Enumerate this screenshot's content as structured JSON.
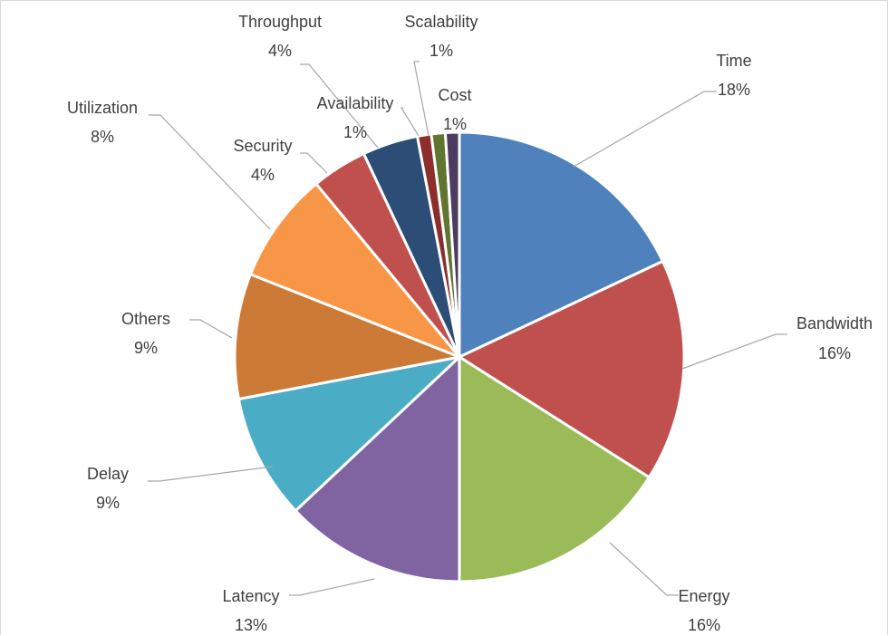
{
  "chart_data": {
    "type": "pie",
    "title": "",
    "legend": "none",
    "slices": [
      {
        "label": "Time",
        "value": 18,
        "pct_label": "18%",
        "color": "#4f81bd"
      },
      {
        "label": "Bandwidth",
        "value": 16,
        "pct_label": "16%",
        "color": "#c0504d"
      },
      {
        "label": "Energy",
        "value": 16,
        "pct_label": "16%",
        "color": "#9bbb59"
      },
      {
        "label": "Latency",
        "value": 13,
        "pct_label": "13%",
        "color": "#8064a2"
      },
      {
        "label": "Delay",
        "value": 9,
        "pct_label": "9%",
        "color": "#4bacc6"
      },
      {
        "label": "Others",
        "value": 9,
        "pct_label": "9%",
        "color": "#cc7a35"
      },
      {
        "label": "Utilization",
        "value": 8,
        "pct_label": "8%",
        "color": "#f79646"
      },
      {
        "label": "Security",
        "value": 4,
        "pct_label": "4%",
        "color": "#c0504d"
      },
      {
        "label": "Throughput",
        "value": 4,
        "pct_label": "4%",
        "color": "#2c4d75"
      },
      {
        "label": "Availability",
        "value": 1,
        "pct_label": "1%",
        "color": "#8c2e2b"
      },
      {
        "label": "Scalability",
        "value": 1,
        "pct_label": "1%",
        "color": "#5f7530"
      },
      {
        "label": "Cost",
        "value": 1,
        "pct_label": "1%",
        "color": "#4d3b62"
      }
    ]
  }
}
